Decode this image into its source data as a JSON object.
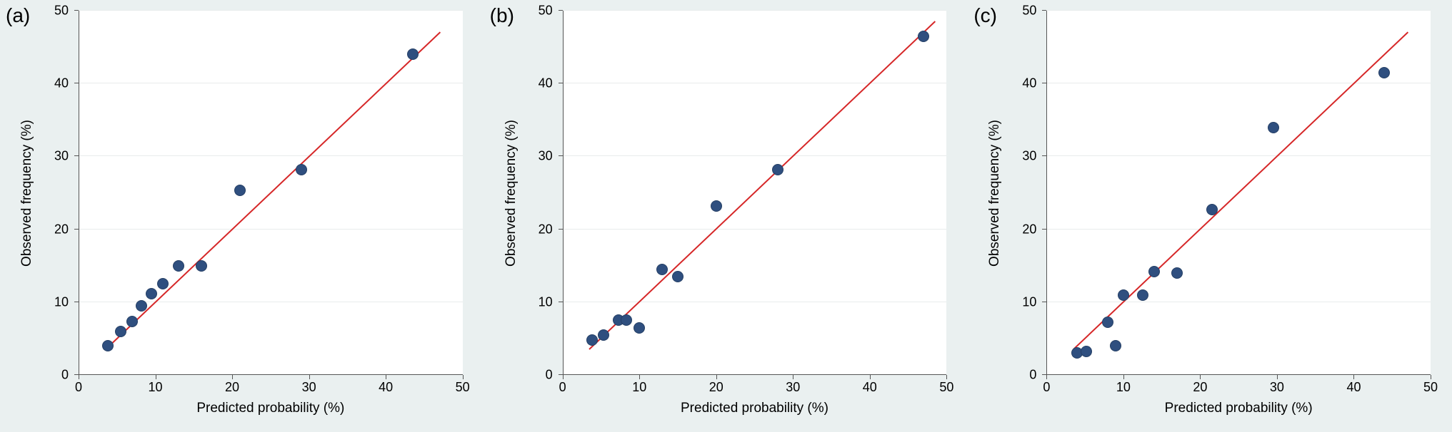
{
  "figure": {
    "background_color": "#eaf0f0",
    "plot_background": "#ffffff",
    "grid_color": "#e8ecec",
    "axis_color": "#555555",
    "tick_fontsize": 18,
    "label_fontsize": 19,
    "panel_label_fontsize": 28,
    "marker_size": 14,
    "marker_color": "#2f4f7f",
    "line_color": "#d62728",
    "line_width": 2
  },
  "panels": [
    {
      "label": "(a)",
      "x_title": "Predicted probability (%)",
      "y_title": "Observed frequency  (%)",
      "xlim": [
        0,
        50
      ],
      "ylim": [
        0,
        50
      ],
      "xticks": [
        0,
        10,
        20,
        30,
        40,
        50
      ],
      "yticks": [
        0,
        10,
        20,
        30,
        40,
        50
      ],
      "x_tick_labels": [
        "0",
        "10",
        "20",
        "30",
        "40",
        "50"
      ],
      "y_tick_labels": [
        "0",
        "10",
        "20",
        "30",
        "40",
        "50"
      ],
      "grid_y": [
        10,
        20,
        30,
        40,
        50
      ],
      "line": {
        "x1": 3.5,
        "y1": 3.5,
        "x2": 47,
        "y2": 47
      },
      "points": [
        {
          "x": 3.8,
          "y": 4.0
        },
        {
          "x": 5.5,
          "y": 6.0
        },
        {
          "x": 7.0,
          "y": 7.3
        },
        {
          "x": 8.2,
          "y": 9.5
        },
        {
          "x": 9.5,
          "y": 11.2
        },
        {
          "x": 11.0,
          "y": 12.5
        },
        {
          "x": 13.0,
          "y": 15.0
        },
        {
          "x": 16.0,
          "y": 15.0
        },
        {
          "x": 21.0,
          "y": 25.3
        },
        {
          "x": 29.0,
          "y": 28.2
        },
        {
          "x": 43.5,
          "y": 44.0
        }
      ]
    },
    {
      "label": "(b)",
      "x_title": "Predicted probability (%)",
      "y_title": "Observed frequency  (%)",
      "xlim": [
        0,
        50
      ],
      "ylim": [
        0,
        50
      ],
      "xticks": [
        0,
        10,
        20,
        30,
        40,
        50
      ],
      "yticks": [
        0,
        10,
        20,
        30,
        40,
        50
      ],
      "x_tick_labels": [
        "0",
        "10",
        "20",
        "30",
        "40",
        "50"
      ],
      "y_tick_labels": [
        "0",
        "10",
        "20",
        "30",
        "40",
        "50"
      ],
      "grid_y": [
        10,
        20,
        30,
        40,
        50
      ],
      "line": {
        "x1": 3.5,
        "y1": 3.5,
        "x2": 48.5,
        "y2": 48.5
      },
      "points": [
        {
          "x": 3.8,
          "y": 4.8
        },
        {
          "x": 5.3,
          "y": 5.5
        },
        {
          "x": 7.3,
          "y": 7.5
        },
        {
          "x": 8.3,
          "y": 7.5
        },
        {
          "x": 10.0,
          "y": 6.5
        },
        {
          "x": 13.0,
          "y": 14.5
        },
        {
          "x": 15.0,
          "y": 13.5
        },
        {
          "x": 20.0,
          "y": 23.2
        },
        {
          "x": 28.0,
          "y": 28.2
        },
        {
          "x": 47.0,
          "y": 46.5
        }
      ]
    },
    {
      "label": "(c)",
      "x_title": "Predicted probability (%)",
      "y_title": "Observed frequency  (%)",
      "xlim": [
        0,
        50
      ],
      "ylim": [
        0,
        50
      ],
      "xticks": [
        0,
        10,
        20,
        30,
        40,
        50
      ],
      "yticks": [
        0,
        10,
        20,
        30,
        40,
        50
      ],
      "x_tick_labels": [
        "0",
        "10",
        "20",
        "30",
        "40",
        "50"
      ],
      "y_tick_labels": [
        "0",
        "10",
        "20",
        "30",
        "40",
        "50"
      ],
      "grid_y": [
        10,
        20,
        30,
        40,
        50
      ],
      "line": {
        "x1": 3.5,
        "y1": 3.5,
        "x2": 47,
        "y2": 47
      },
      "points": [
        {
          "x": 4.0,
          "y": 3.0
        },
        {
          "x": 5.2,
          "y": 3.2
        },
        {
          "x": 8.0,
          "y": 7.2
        },
        {
          "x": 9.0,
          "y": 4.0
        },
        {
          "x": 10.0,
          "y": 11.0
        },
        {
          "x": 12.5,
          "y": 11.0
        },
        {
          "x": 14.0,
          "y": 14.2
        },
        {
          "x": 17.0,
          "y": 14.0
        },
        {
          "x": 21.5,
          "y": 22.7
        },
        {
          "x": 29.5,
          "y": 34.0
        },
        {
          "x": 44.0,
          "y": 41.5
        }
      ]
    }
  ]
}
